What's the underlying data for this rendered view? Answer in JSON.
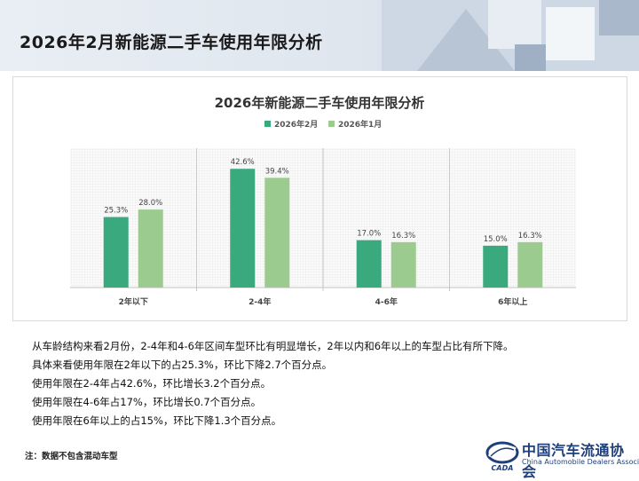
{
  "page": {
    "title": "2026年2月新能源二手车使用年限分析"
  },
  "chart_data": {
    "type": "bar",
    "title": "2026年新能源二手车使用年限分析",
    "categories": [
      "2年以下",
      "2-4年",
      "4-6年",
      "6年以上"
    ],
    "series": [
      {
        "name": "2026年2月",
        "color": "#3aaa7e",
        "values": [
          25.3,
          42.6,
          17.0,
          15.0
        ],
        "labels": [
          "25.3%",
          "42.6%",
          "17.0%",
          "15.0%"
        ]
      },
      {
        "name": "2026年1月",
        "color": "#9ccb8f",
        "values": [
          28.0,
          39.4,
          16.3,
          16.3
        ],
        "labels": [
          "28.0%",
          "39.4%",
          "16.3%",
          "16.3%"
        ]
      }
    ],
    "ylim": [
      0,
      50
    ],
    "grid": true,
    "legend_position": "top"
  },
  "summary": {
    "lines": [
      "从车龄结构来看2月份，2-4年和4-6年区间车型环比有明显增长，2年以内和6年以上的车型占比有所下降。",
      "具体来看使用年限在2年以下的占25.3%，环比下降2.7个百分点。",
      "使用年限在2-4年占42.6%，环比增长3.2个百分点。",
      "使用年限在4-6年占17%，环比增长0.7个百分点。",
      "使用年限在6年以上的占15%，环比下降1.3个百分点。"
    ]
  },
  "note": "注：数据不包含混动车型",
  "logo": {
    "name_cn": "中国汽车流通协会",
    "name_en": "China Automobile Dealers Association",
    "mark_text": "CADA",
    "brand_color": "#1f3f7a"
  }
}
